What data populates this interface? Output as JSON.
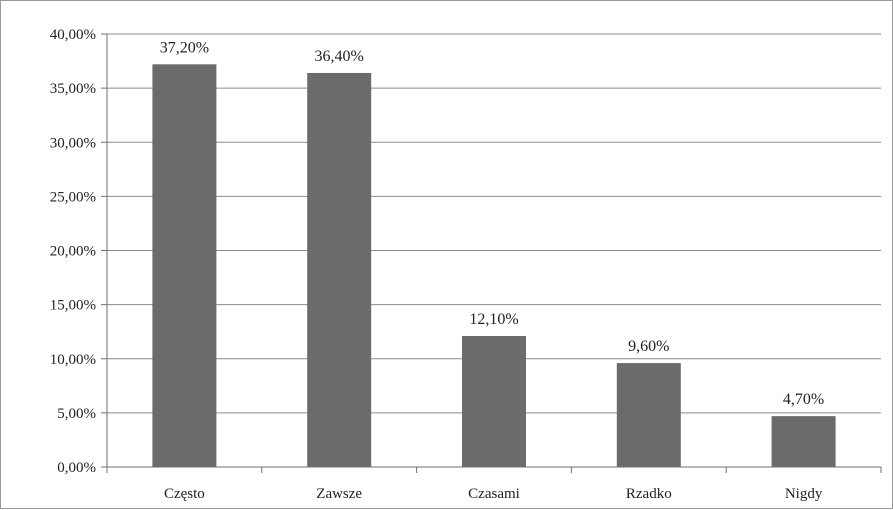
{
  "chart_data": {
    "type": "bar",
    "categories": [
      "Często",
      "Zawsze",
      "Czasami",
      "Rzadko",
      "Nigdy"
    ],
    "values": [
      37.2,
      36.4,
      12.1,
      9.6,
      4.7
    ],
    "data_labels": [
      "37,20%",
      "36,40%",
      "12,10%",
      "9,60%",
      "4,70%"
    ],
    "y_tick_values": [
      0,
      5,
      10,
      15,
      20,
      25,
      30,
      35,
      40
    ],
    "y_tick_labels": [
      "0,00%",
      "5,00%",
      "10,00%",
      "15,00%",
      "20,00%",
      "25,00%",
      "30,00%",
      "35,00%",
      "40,00%"
    ],
    "ylim": [
      0,
      40
    ],
    "title": "",
    "xlabel": "",
    "ylabel": "",
    "grid": true,
    "legend": "none",
    "colors": {
      "bar": "#6b6b6b",
      "grid": "#8c8c8c",
      "axis": "#6f6f6f",
      "text": "#222222"
    }
  }
}
